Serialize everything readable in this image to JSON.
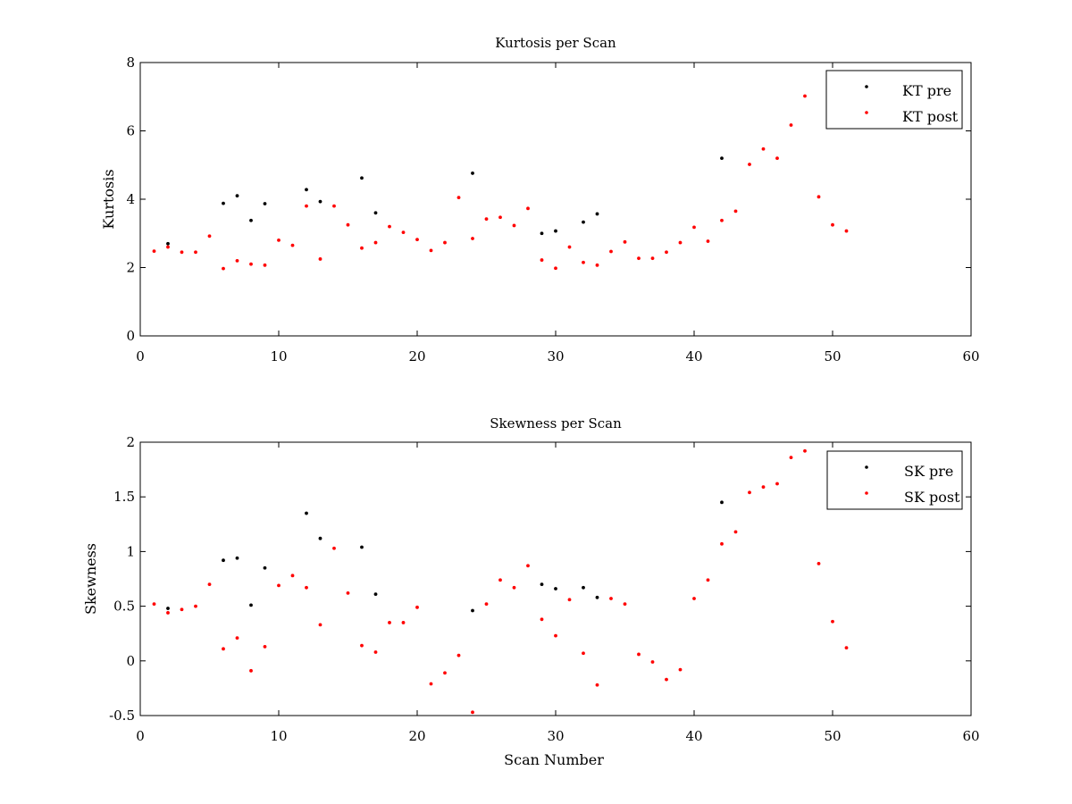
{
  "chart_data": [
    {
      "type": "scatter",
      "title": "Kurtosis per Scan",
      "xlabel": "",
      "ylabel": "Kurtosis",
      "xlim": [
        0,
        60
      ],
      "ylim": [
        0,
        8
      ],
      "xticks": [
        0,
        10,
        20,
        30,
        40,
        50,
        60
      ],
      "yticks": [
        0,
        2,
        4,
        6,
        8
      ],
      "xtick_labels": [
        "0",
        "10",
        "20",
        "30",
        "40",
        "50",
        "60"
      ],
      "ytick_labels": [
        "0",
        "2",
        "4",
        "6",
        "8"
      ],
      "grid": false,
      "legend_position": "top-right",
      "series": [
        {
          "name": "KT pre",
          "color": "#000000",
          "x": [
            2,
            6,
            7,
            8,
            9,
            12,
            13,
            16,
            17,
            24,
            29,
            30,
            32,
            33,
            42
          ],
          "y": [
            2.7,
            3.88,
            4.1,
            3.38,
            3.87,
            4.28,
            3.93,
            4.62,
            3.6,
            4.76,
            3.0,
            3.07,
            3.33,
            3.57,
            5.2
          ]
        },
        {
          "name": "KT post",
          "color": "#ff0000",
          "x": [
            1,
            2,
            3,
            4,
            5,
            6,
            7,
            8,
            9,
            10,
            11,
            12,
            13,
            14,
            15,
            16,
            17,
            18,
            19,
            20,
            21,
            22,
            23,
            24,
            25,
            26,
            27,
            28,
            29,
            30,
            31,
            32,
            33,
            34,
            35,
            36,
            37,
            38,
            39,
            40,
            41,
            42,
            43,
            44,
            45,
            46,
            47,
            48,
            49,
            50,
            51
          ],
          "y": [
            2.48,
            2.6,
            2.45,
            2.45,
            2.92,
            1.97,
            2.2,
            2.1,
            2.07,
            2.8,
            2.65,
            3.8,
            2.25,
            3.8,
            3.25,
            2.57,
            2.73,
            3.2,
            3.03,
            2.82,
            2.5,
            2.73,
            4.05,
            2.85,
            3.42,
            3.47,
            3.23,
            3.73,
            2.22,
            1.98,
            2.6,
            2.15,
            2.07,
            2.47,
            2.75,
            2.27,
            2.27,
            2.45,
            2.73,
            3.18,
            2.77,
            3.38,
            3.65,
            5.02,
            5.47,
            5.2,
            6.17,
            7.02,
            4.07,
            3.25,
            3.07
          ]
        }
      ]
    },
    {
      "type": "scatter",
      "title": "Skewness per Scan",
      "xlabel": "Scan Number",
      "ylabel": "Skewness",
      "xlim": [
        0,
        60
      ],
      "ylim": [
        -0.5,
        2
      ],
      "xticks": [
        0,
        10,
        20,
        30,
        40,
        50,
        60
      ],
      "yticks": [
        -0.5,
        0,
        0.5,
        1,
        1.5,
        2
      ],
      "xtick_labels": [
        "0",
        "10",
        "20",
        "30",
        "40",
        "50",
        "60"
      ],
      "ytick_labels": [
        "-0.5",
        "0",
        "0.5",
        "1",
        "1.5",
        "2"
      ],
      "grid": false,
      "legend_position": "top-right",
      "series": [
        {
          "name": "SK pre",
          "color": "#000000",
          "x": [
            2,
            6,
            7,
            8,
            9,
            12,
            13,
            16,
            17,
            24,
            29,
            30,
            32,
            33,
            42
          ],
          "y": [
            0.48,
            0.92,
            0.94,
            0.51,
            0.85,
            1.35,
            1.12,
            1.04,
            0.61,
            0.46,
            0.7,
            0.66,
            0.67,
            0.58,
            1.45
          ]
        },
        {
          "name": "SK post",
          "color": "#ff0000",
          "x": [
            1,
            2,
            3,
            4,
            5,
            6,
            7,
            8,
            9,
            10,
            11,
            12,
            13,
            14,
            15,
            16,
            17,
            18,
            19,
            20,
            21,
            22,
            23,
            24,
            25,
            26,
            27,
            28,
            29,
            30,
            31,
            32,
            33,
            34,
            35,
            36,
            37,
            38,
            39,
            40,
            41,
            42,
            43,
            44,
            45,
            46,
            47,
            48,
            49,
            50,
            51
          ],
          "y": [
            0.52,
            0.44,
            0.47,
            0.5,
            0.7,
            0.11,
            0.21,
            -0.09,
            0.13,
            0.69,
            0.78,
            0.67,
            0.33,
            1.03,
            0.62,
            0.14,
            0.08,
            0.35,
            0.35,
            0.49,
            -0.21,
            -0.11,
            0.05,
            -0.47,
            0.52,
            0.74,
            0.67,
            0.87,
            0.38,
            0.23,
            0.56,
            0.07,
            -0.22,
            0.57,
            0.52,
            0.06,
            -0.01,
            -0.17,
            -0.08,
            0.57,
            0.74,
            1.07,
            1.18,
            1.54,
            1.59,
            1.62,
            1.86,
            1.92,
            0.89,
            0.36,
            0.12
          ]
        }
      ]
    }
  ]
}
